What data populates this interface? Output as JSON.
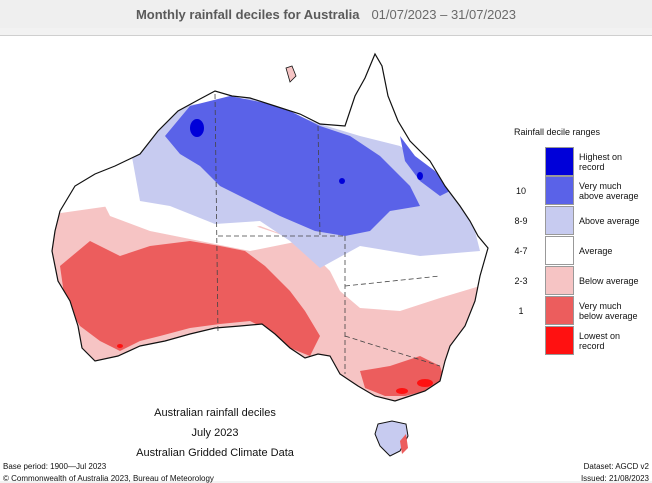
{
  "header": {
    "title": "Monthly rainfall deciles for Australia",
    "date_range": "01/07/2023 – 31/07/2023"
  },
  "legend": {
    "title": "Rainfall decile ranges",
    "items": [
      {
        "range": "",
        "label_line1": "Highest on",
        "label_line2": "record",
        "color": "#0000d9"
      },
      {
        "range": "10",
        "label_line1": "Very much",
        "label_line2": "above average",
        "color": "#5a62e8"
      },
      {
        "range": "8-9",
        "label_line1": "Above average",
        "label_line2": "",
        "color": "#c7cbf0"
      },
      {
        "range": "4-7",
        "label_line1": "Average",
        "label_line2": "",
        "color": "#ffffff"
      },
      {
        "range": "2-3",
        "label_line1": "Below average",
        "label_line2": "",
        "color": "#f6c4c4"
      },
      {
        "range": "1",
        "label_line1": "Very much",
        "label_line2": "below average",
        "color": "#ec5d5d"
      },
      {
        "range": "",
        "label_line1": "Lowest on",
        "label_line2": "record",
        "color": "#ff1111"
      }
    ]
  },
  "caption": {
    "line1": "Australian rainfall deciles",
    "line2": "July 2023",
    "line3": "Australian Gridded Climate Data"
  },
  "footer": {
    "base_period": "Base period: 1900—Jul 2023",
    "dataset": "Dataset: AGCD v2",
    "copyright": "© Commonwealth of Australia 2023, Bureau of Meteorology",
    "issued": "Issued: 21/08/2023"
  }
}
